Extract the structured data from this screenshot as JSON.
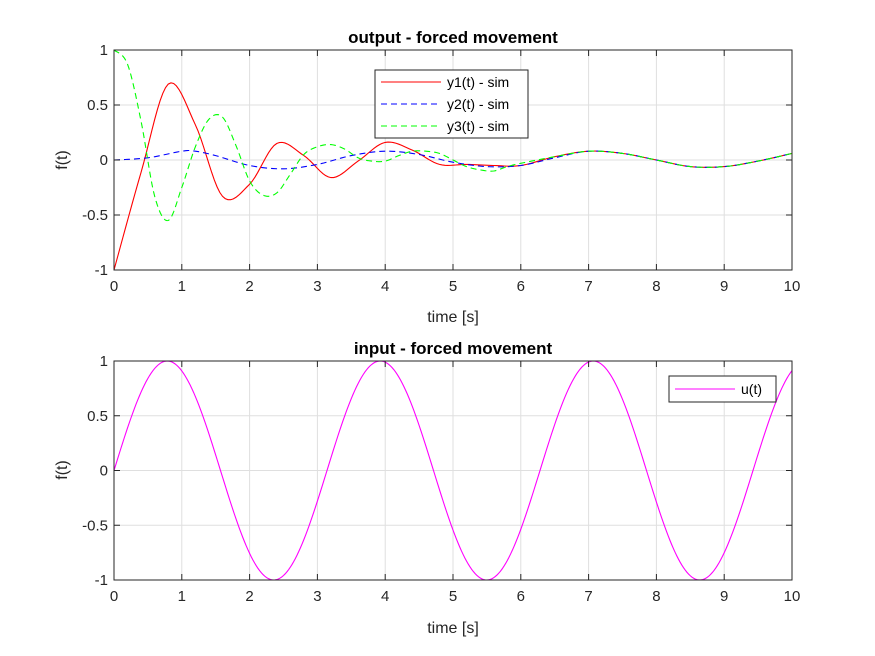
{
  "chart_data": [
    {
      "type": "line",
      "title": "output - forced movement",
      "xlabel": "time [s]",
      "ylabel": "f(t)",
      "xlim": [
        0,
        10
      ],
      "ylim": [
        -1,
        1
      ],
      "xticks": [
        "0",
        "1",
        "2",
        "3",
        "4",
        "5",
        "6",
        "7",
        "8",
        "9",
        "10"
      ],
      "yticks": [
        "-1",
        "-0.5",
        "0",
        "0.5",
        "1"
      ],
      "grid": true,
      "legend_position": "top-center",
      "series": [
        {
          "name": "y1(t) - sim",
          "color": "#ff0000",
          "dash": "solid",
          "x": [
            0,
            0.4,
            0.8,
            1.2,
            1.6,
            2.0,
            2.4,
            2.8,
            3.2,
            3.6,
            4.0,
            4.4,
            4.8,
            5.2,
            5.6,
            6.0,
            6.5,
            7.0,
            7.5,
            8.0,
            8.5,
            9.0,
            9.5,
            10.0
          ],
          "y": [
            -1.0,
            -0.11,
            0.69,
            0.32,
            -0.33,
            -0.22,
            0.15,
            0.04,
            -0.16,
            -0.01,
            0.16,
            0.09,
            -0.04,
            -0.04,
            -0.05,
            -0.05,
            0.03,
            0.08,
            0.06,
            0.0,
            -0.06,
            -0.06,
            -0.01,
            0.06
          ]
        },
        {
          "name": "y2(t) - sim",
          "color": "#0000ff",
          "dash": "dashed",
          "x": [
            0,
            0.5,
            1.0,
            1.2,
            1.5,
            2.0,
            2.5,
            3.0,
            3.5,
            4.0,
            4.5,
            5.0,
            5.5,
            6.0,
            6.5,
            7.0,
            7.5,
            8.0,
            8.5,
            9.0,
            9.5,
            10.0
          ],
          "y": [
            0.0,
            0.02,
            0.08,
            0.08,
            0.04,
            -0.05,
            -0.08,
            -0.04,
            0.04,
            0.08,
            0.05,
            -0.02,
            -0.06,
            -0.05,
            0.02,
            0.08,
            0.06,
            0.0,
            -0.06,
            -0.06,
            -0.01,
            0.06
          ]
        },
        {
          "name": "y3(t) - sim",
          "color": "#00ff00",
          "dash": "dashed",
          "x": [
            0,
            0.2,
            0.4,
            0.6,
            0.8,
            1.0,
            1.2,
            1.4,
            1.6,
            1.8,
            2.0,
            2.2,
            2.4,
            2.6,
            2.8,
            3.0,
            3.2,
            3.4,
            3.6,
            3.8,
            4.0,
            4.2,
            4.4,
            4.6,
            4.8,
            5.0,
            5.2,
            5.4,
            5.6,
            5.8,
            6.0,
            6.5,
            7.0,
            7.5,
            8.0,
            8.5,
            9.0,
            9.5,
            10.0
          ],
          "y": [
            1.0,
            0.87,
            0.35,
            -0.33,
            -0.55,
            -0.25,
            0.12,
            0.37,
            0.39,
            0.13,
            -0.19,
            -0.32,
            -0.3,
            -0.13,
            0.05,
            0.12,
            0.14,
            0.1,
            0.02,
            -0.01,
            -0.01,
            0.04,
            0.08,
            0.08,
            0.06,
            0.0,
            -0.06,
            -0.09,
            -0.1,
            -0.06,
            -0.03,
            0.03,
            0.08,
            0.06,
            0.0,
            -0.06,
            -0.06,
            -0.01,
            0.06
          ]
        }
      ]
    },
    {
      "type": "line",
      "title": "input - forced movement",
      "xlabel": "time [s]",
      "ylabel": "f(t)",
      "xlim": [
        0,
        10
      ],
      "ylim": [
        -1,
        1
      ],
      "xticks": [
        "0",
        "1",
        "2",
        "3",
        "4",
        "5",
        "6",
        "7",
        "8",
        "9",
        "10"
      ],
      "yticks": [
        "-1",
        "-0.5",
        "0",
        "0.5",
        "1"
      ],
      "grid": true,
      "legend_position": "top-right",
      "series": [
        {
          "name": "u(t)",
          "color": "#ff00ff",
          "dash": "solid",
          "function": "sin(2t)"
        }
      ]
    }
  ]
}
